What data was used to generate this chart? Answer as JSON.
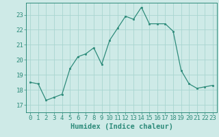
{
  "x": [
    0,
    1,
    2,
    3,
    4,
    5,
    6,
    7,
    8,
    9,
    10,
    11,
    12,
    13,
    14,
    15,
    16,
    17,
    18,
    19,
    20,
    21,
    22,
    23
  ],
  "y": [
    18.5,
    18.4,
    17.3,
    17.5,
    17.7,
    19.4,
    20.2,
    20.4,
    20.8,
    19.7,
    21.3,
    22.1,
    22.9,
    22.7,
    23.5,
    22.4,
    22.4,
    22.4,
    21.9,
    19.3,
    18.4,
    18.1,
    18.2,
    18.3
  ],
  "line_color": "#2d8b7a",
  "marker_color": "#2d8b7a",
  "bg_color": "#ceeae7",
  "grid_color": "#a8d5d0",
  "xlabel": "Humidex (Indice chaleur)",
  "xlim": [
    -0.5,
    23.5
  ],
  "ylim": [
    16.5,
    23.8
  ],
  "yticks": [
    17,
    18,
    19,
    20,
    21,
    22,
    23
  ],
  "xticks": [
    0,
    1,
    2,
    3,
    4,
    5,
    6,
    7,
    8,
    9,
    10,
    11,
    12,
    13,
    14,
    15,
    16,
    17,
    18,
    19,
    20,
    21,
    22,
    23
  ],
  "tick_fontsize": 6.5,
  "xlabel_fontsize": 7.5
}
